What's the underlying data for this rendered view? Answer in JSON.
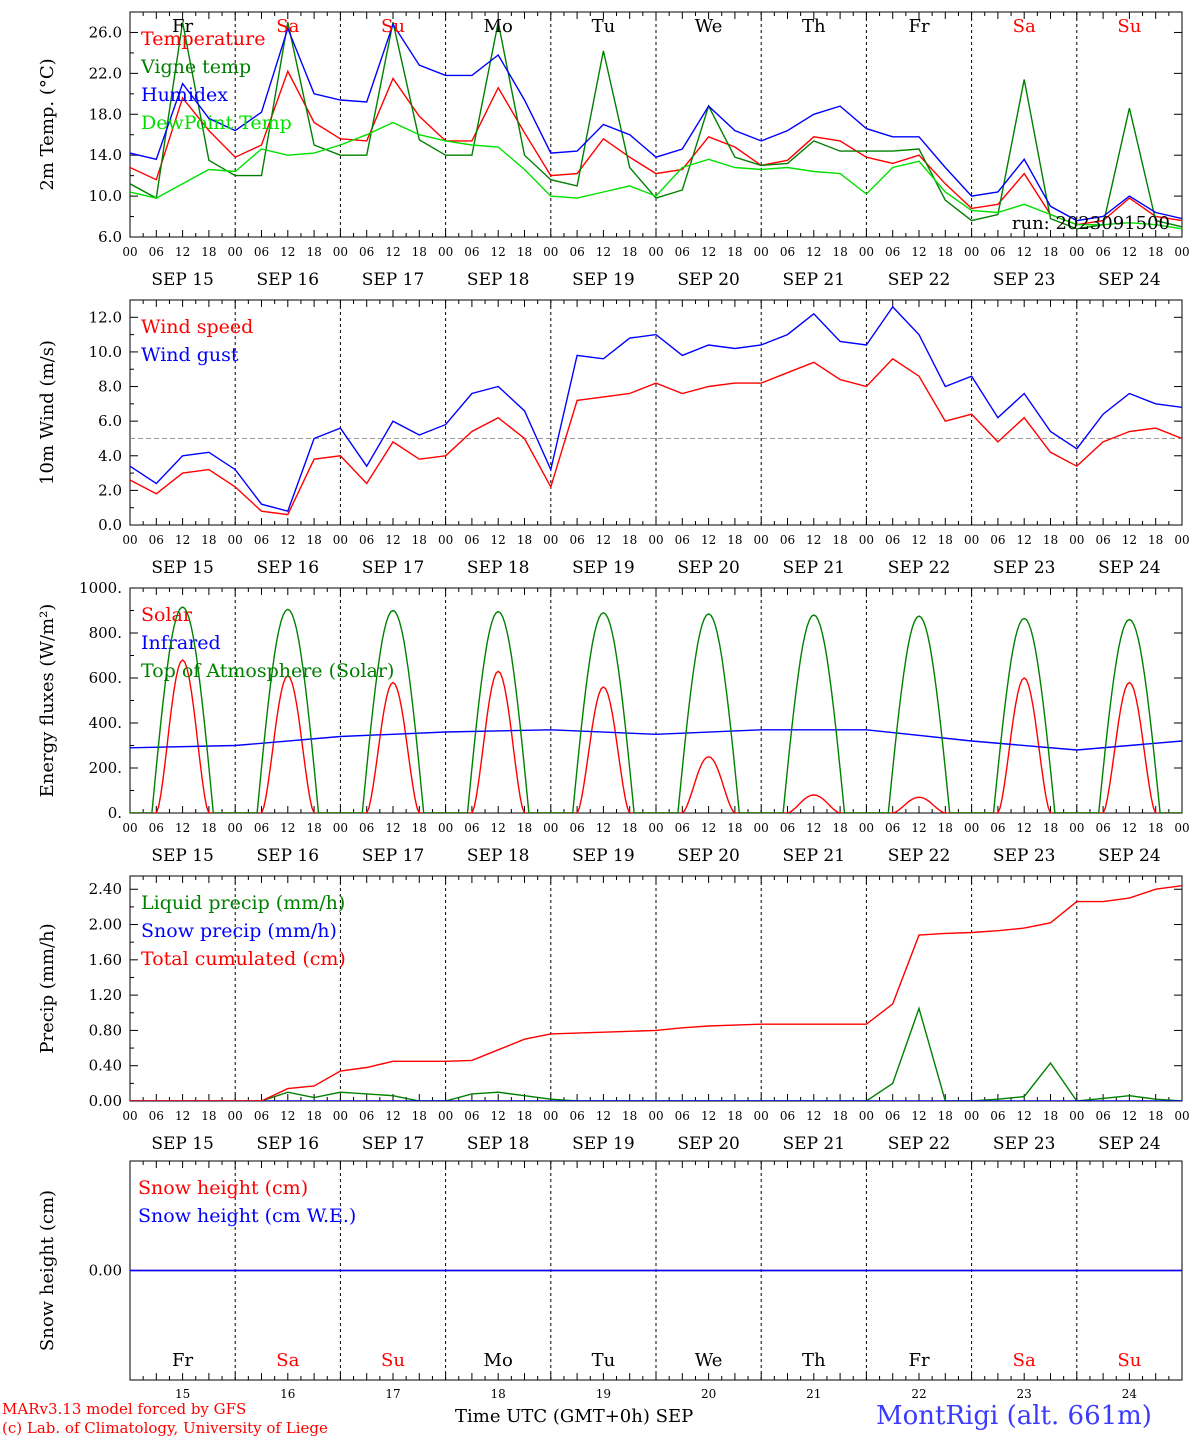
{
  "colors": {
    "red": "#ff0000",
    "green": "#008000",
    "blue": "#0000ff",
    "lime": "#00e000",
    "purple": "#800080"
  },
  "days": {
    "abbr": [
      "Fr",
      "Sa",
      "Su",
      "Mo",
      "Tu",
      "We",
      "Th",
      "Fr",
      "Sa",
      "Su"
    ],
    "weekend": [
      false,
      true,
      true,
      false,
      false,
      false,
      false,
      false,
      true,
      true
    ],
    "dates": [
      "SEP 15",
      "SEP 16",
      "SEP 17",
      "SEP 18",
      "SEP 19",
      "SEP 20",
      "SEP 21",
      "SEP 22",
      "SEP 23",
      "SEP 24"
    ],
    "daynums": [
      "15",
      "16",
      "17",
      "18",
      "19",
      "20",
      "21",
      "22",
      "23",
      "24"
    ],
    "hours": [
      "00",
      "06",
      "12",
      "18"
    ],
    "end_hour": "00"
  },
  "footer": {
    "model": "MARv3.13 model forced by GFS",
    "copyright": "(c) Lab. of Climatology, University of Liege",
    "xlabel": "Time UTC (GMT+0h)",
    "month": "SEP",
    "station": "MontRigi (alt. 661m)"
  },
  "chart_data": [
    {
      "type": "line",
      "ylabel": "2m Temp. (°C)",
      "ylim": [
        6,
        28
      ],
      "yticks": [
        "6.0",
        "10.0",
        "14.0",
        "18.0",
        "22.0",
        "26.0"
      ],
      "run_label": "run: 2023091500",
      "x_units": "hours since SEP 15 00 UTC",
      "series": [
        {
          "name": "Temperature",
          "color": "red",
          "x": [
            0,
            6,
            12,
            18,
            24,
            30,
            36,
            42,
            48,
            54,
            60,
            66,
            72,
            78,
            84,
            90,
            96,
            102,
            108,
            114,
            120,
            126,
            132,
            138,
            144,
            150,
            156,
            162,
            168,
            174,
            180,
            186,
            192,
            198,
            204,
            210,
            216,
            222,
            228,
            234,
            240
          ],
          "y": [
            12.8,
            11.6,
            19.6,
            16.4,
            13.8,
            15.0,
            22.2,
            17.2,
            15.6,
            15.4,
            21.5,
            17.8,
            15.4,
            15.4,
            20.6,
            16.2,
            12.0,
            12.2,
            15.6,
            13.8,
            12.2,
            12.6,
            15.8,
            14.8,
            13.0,
            13.5,
            15.8,
            15.4,
            13.8,
            13.2,
            14.0,
            11.2,
            8.8,
            9.2,
            12.2,
            8.2,
            7.2,
            7.6,
            9.8,
            8.0,
            7.6
          ]
        },
        {
          "name": "Vigne temp",
          "color": "green",
          "x": [
            0,
            6,
            12,
            18,
            24,
            30,
            36,
            42,
            48,
            54,
            60,
            66,
            72,
            78,
            84,
            90,
            96,
            102,
            108,
            114,
            120,
            126,
            132,
            138,
            144,
            150,
            156,
            162,
            168,
            174,
            180,
            186,
            192,
            198,
            204,
            210,
            216,
            222,
            228,
            234,
            240
          ],
          "y": [
            11.2,
            9.8,
            27.0,
            13.5,
            12.0,
            12.0,
            27.0,
            15.0,
            14.0,
            14.0,
            27.0,
            15.5,
            14.0,
            14.0,
            27.0,
            14.0,
            11.6,
            11.0,
            24.2,
            12.8,
            9.8,
            10.6,
            18.8,
            13.8,
            13.0,
            13.2,
            15.4,
            14.4,
            14.4,
            14.4,
            14.6,
            9.6,
            7.6,
            8.2,
            21.4,
            7.8,
            6.8,
            7.2,
            18.6,
            7.6,
            7.0
          ]
        },
        {
          "name": "Humidex",
          "color": "blue",
          "x": [
            0,
            6,
            12,
            18,
            24,
            30,
            36,
            42,
            48,
            54,
            60,
            66,
            72,
            78,
            84,
            90,
            96,
            102,
            108,
            114,
            120,
            126,
            132,
            138,
            144,
            150,
            156,
            162,
            168,
            174,
            180,
            186,
            192,
            198,
            204,
            210,
            216,
            222,
            228,
            234,
            240
          ],
          "y": [
            14.2,
            13.6,
            21.0,
            17.6,
            16.4,
            18.2,
            26.4,
            20.0,
            19.4,
            19.2,
            26.8,
            22.8,
            21.8,
            21.8,
            23.8,
            19.4,
            14.2,
            14.4,
            17.0,
            16.0,
            13.8,
            14.6,
            18.8,
            16.4,
            15.4,
            16.4,
            18.0,
            18.8,
            16.6,
            15.8,
            15.8,
            12.8,
            10.0,
            10.4,
            13.6,
            9.0,
            7.6,
            8.0,
            10.0,
            8.4,
            7.8
          ]
        },
        {
          "name": "DewPoint Temp",
          "color": "lime",
          "x": [
            0,
            6,
            12,
            18,
            24,
            30,
            36,
            42,
            48,
            54,
            60,
            66,
            72,
            78,
            84,
            90,
            96,
            102,
            108,
            114,
            120,
            126,
            132,
            138,
            144,
            150,
            156,
            162,
            168,
            174,
            180,
            186,
            192,
            198,
            204,
            210,
            216,
            222,
            228,
            234,
            240
          ],
          "y": [
            10.4,
            9.8,
            11.2,
            12.6,
            12.4,
            14.6,
            14.0,
            14.2,
            15.0,
            16.0,
            17.2,
            16.0,
            15.4,
            15.0,
            14.8,
            12.6,
            10.0,
            9.8,
            10.4,
            11.0,
            10.0,
            12.8,
            13.6,
            12.8,
            12.6,
            12.8,
            12.4,
            12.2,
            10.2,
            12.8,
            13.4,
            10.4,
            8.6,
            8.4,
            9.2,
            8.2,
            7.2,
            7.2,
            7.4,
            7.2,
            6.8
          ]
        }
      ]
    },
    {
      "type": "line",
      "ylabel": "10m Wind (m/s)",
      "ylim": [
        0,
        13
      ],
      "yticks": [
        "0.0",
        "2.0",
        "4.0",
        "6.0",
        "8.0",
        "10.0",
        "12.0"
      ],
      "reference_line": 5,
      "series": [
        {
          "name": "Wind speed",
          "color": "red",
          "x": [
            0,
            6,
            12,
            18,
            24,
            30,
            36,
            42,
            48,
            54,
            60,
            66,
            72,
            78,
            84,
            90,
            96,
            102,
            108,
            114,
            120,
            126,
            132,
            138,
            144,
            150,
            156,
            162,
            168,
            174,
            180,
            186,
            192,
            198,
            204,
            210,
            216,
            222,
            228,
            234,
            240
          ],
          "y": [
            2.6,
            1.8,
            3.0,
            3.2,
            2.2,
            0.8,
            0.6,
            3.8,
            4.0,
            2.4,
            4.8,
            3.8,
            4.0,
            5.4,
            6.2,
            5.0,
            2.2,
            7.2,
            7.4,
            7.6,
            8.2,
            7.6,
            8.0,
            8.2,
            8.2,
            8.8,
            9.4,
            8.4,
            8.0,
            9.6,
            8.6,
            6.0,
            6.4,
            4.8,
            6.2,
            4.2,
            3.4,
            4.8,
            5.4,
            5.6,
            5.0
          ]
        },
        {
          "name": "Wind gust",
          "color": "blue",
          "x": [
            0,
            6,
            12,
            18,
            24,
            30,
            36,
            42,
            48,
            54,
            60,
            66,
            72,
            78,
            84,
            90,
            96,
            102,
            108,
            114,
            120,
            126,
            132,
            138,
            144,
            150,
            156,
            162,
            168,
            174,
            180,
            186,
            192,
            198,
            204,
            210,
            216,
            222,
            228,
            234,
            240
          ],
          "y": [
            3.4,
            2.4,
            4.0,
            4.2,
            3.2,
            1.2,
            0.8,
            5.0,
            5.6,
            3.4,
            6.0,
            5.2,
            5.8,
            7.6,
            8.0,
            6.6,
            3.2,
            9.8,
            9.6,
            10.8,
            11.0,
            9.8,
            10.4,
            10.2,
            10.4,
            11.0,
            12.2,
            10.6,
            10.4,
            12.6,
            11.0,
            8.0,
            8.6,
            6.2,
            7.6,
            5.4,
            4.4,
            6.4,
            7.6,
            7.0,
            6.8
          ]
        }
      ]
    },
    {
      "type": "line",
      "ylabel": "Energy fluxes (W/m²)",
      "ylim": [
        0,
        1000
      ],
      "yticks": [
        "0.",
        "200.",
        "400.",
        "600.",
        "800.",
        "1000."
      ],
      "series": [
        {
          "name": "Solar",
          "color": "red",
          "daily_peaks": [
            680,
            610,
            580,
            630,
            560,
            250,
            80,
            70,
            600,
            580
          ]
        },
        {
          "name": "Infrared",
          "color": "blue",
          "x": [
            0,
            24,
            48,
            72,
            96,
            120,
            144,
            168,
            192,
            216,
            240
          ],
          "y": [
            290,
            300,
            340,
            360,
            370,
            350,
            370,
            370,
            320,
            280,
            320
          ]
        },
        {
          "name": "Top of Atmosphere (Solar)",
          "color": "green",
          "daily_peaks": [
            915,
            905,
            900,
            895,
            890,
            885,
            880,
            875,
            865,
            860
          ]
        }
      ]
    },
    {
      "type": "line",
      "ylabel": "Precip (mm/h)",
      "ylim": [
        0,
        2.55
      ],
      "yticks": [
        "0.00",
        "0.40",
        "0.80",
        "1.20",
        "1.60",
        "2.00",
        "2.40"
      ],
      "series": [
        {
          "name": "Liquid precip (mm/h)",
          "color": "green",
          "x": [
            0,
            30,
            36,
            42,
            48,
            54,
            60,
            66,
            72,
            78,
            84,
            90,
            96,
            102,
            168,
            174,
            180,
            186,
            192,
            198,
            204,
            210,
            216,
            222,
            228,
            234,
            240
          ],
          "y": [
            0,
            0,
            0.1,
            0.04,
            0.1,
            0.08,
            0.06,
            0,
            0,
            0.08,
            0.1,
            0.06,
            0.02,
            0,
            0,
            0.2,
            1.05,
            0,
            0,
            0.02,
            0.05,
            0.43,
            0,
            0.03,
            0.06,
            0.02,
            0
          ]
        },
        {
          "name": "Snow precip (mm/h)",
          "color": "blue",
          "x": [
            0,
            240
          ],
          "y": [
            0,
            0
          ]
        },
        {
          "name": "Total cumulated (cm)",
          "color": "red",
          "x": [
            0,
            30,
            36,
            42,
            48,
            54,
            60,
            66,
            72,
            78,
            84,
            90,
            96,
            102,
            108,
            114,
            120,
            126,
            132,
            138,
            144,
            150,
            156,
            162,
            168,
            174,
            180,
            186,
            192,
            198,
            204,
            210,
            216,
            222,
            228,
            234,
            240
          ],
          "y": [
            0,
            0,
            0.14,
            0.17,
            0.34,
            0.38,
            0.45,
            0.45,
            0.45,
            0.46,
            0.58,
            0.7,
            0.76,
            0.77,
            0.78,
            0.79,
            0.8,
            0.83,
            0.85,
            0.86,
            0.87,
            0.87,
            0.87,
            0.87,
            0.87,
            1.1,
            1.88,
            1.9,
            1.91,
            1.93,
            1.96,
            2.02,
            2.26,
            2.26,
            2.3,
            2.4,
            2.44
          ]
        }
      ]
    },
    {
      "type": "line",
      "ylabel": "Snow height (cm)",
      "ylim": [
        -1,
        1
      ],
      "yticks": [
        "0.00"
      ],
      "series": [
        {
          "name": "Snow height (cm)",
          "color": "red",
          "x": [
            0,
            240
          ],
          "y": [
            0,
            0
          ]
        },
        {
          "name": "Snow height (cm W.E.)",
          "color": "blue",
          "x": [
            0,
            240
          ],
          "y": [
            0,
            0
          ]
        }
      ]
    }
  ]
}
